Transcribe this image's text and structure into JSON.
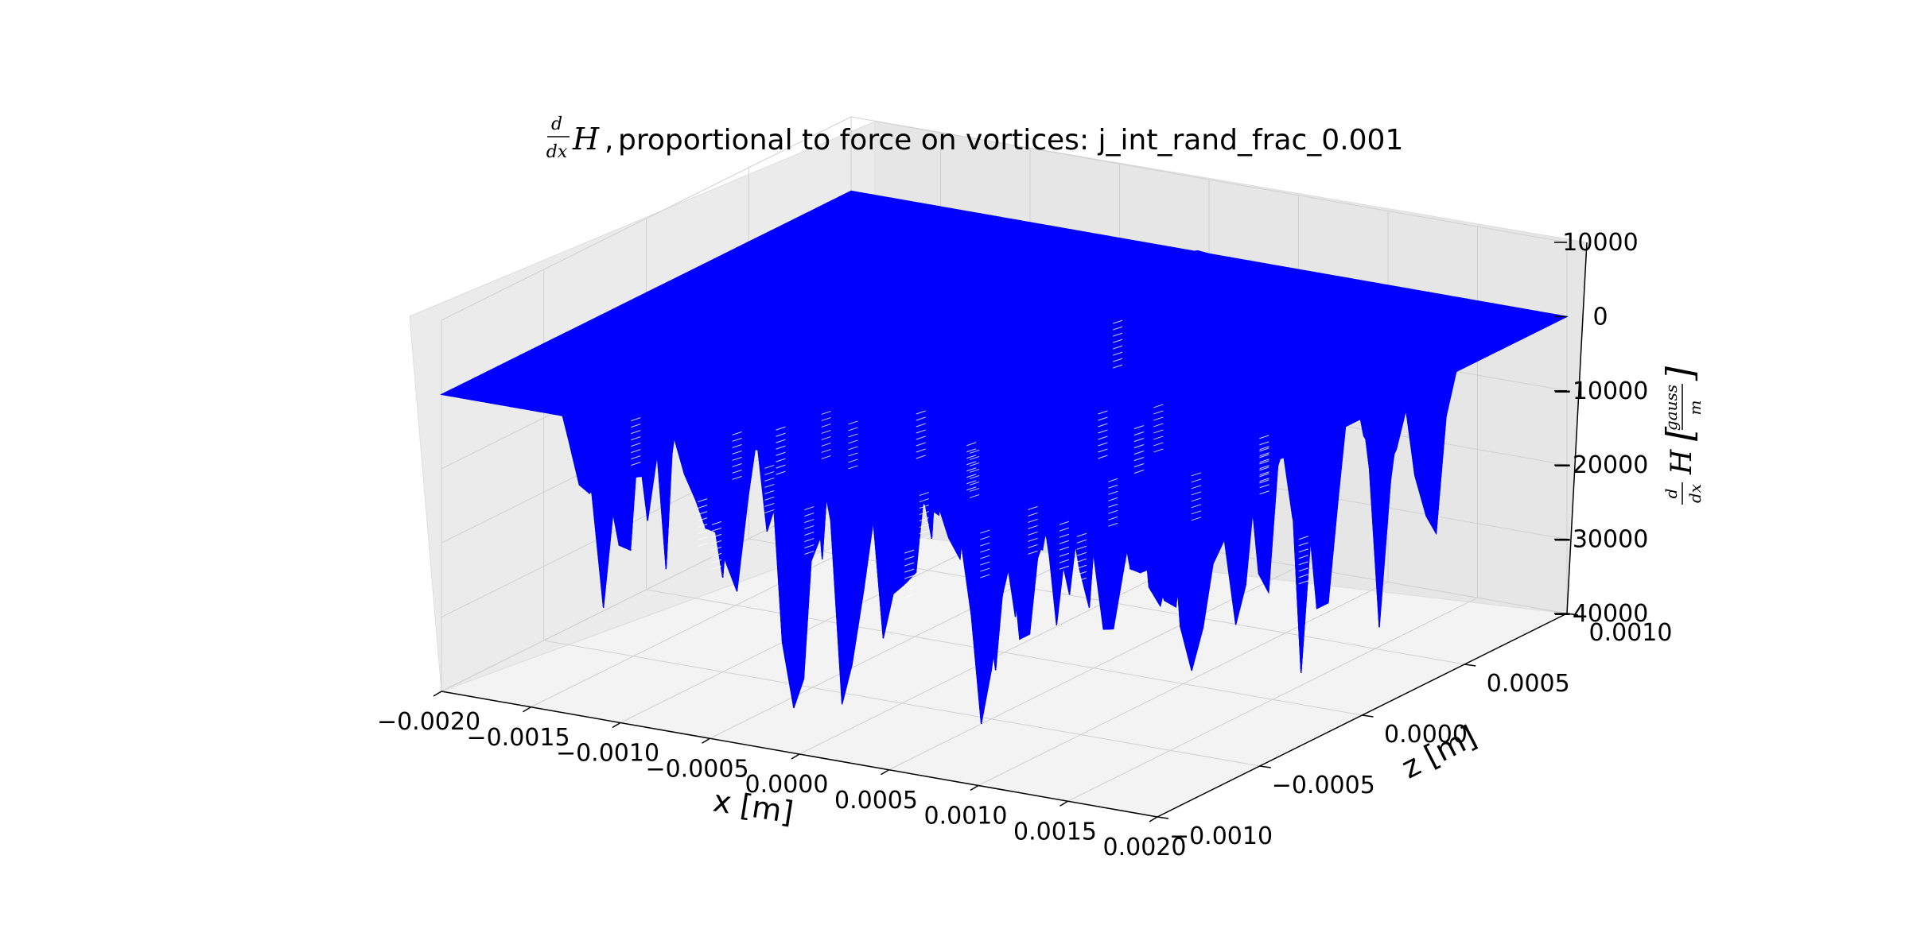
{
  "chart_data": {
    "type": "surface3d",
    "title": "proportional to force on vortices: j_int_rand_frac_0.001",
    "title_math": "d/dx H",
    "xlabel": "x [m]",
    "zlabel_axis": "z [m]",
    "value_label_math": "d/dx H [gauss/m]",
    "x_ticks": [
      "−0.0020",
      "−0.0015",
      "−0.0010",
      "−0.0005",
      "0.0000",
      "0.0005",
      "0.0010",
      "0.0015",
      "0.0020"
    ],
    "z_ticks": [
      "−0.0010",
      "−0.0005",
      "0.0000",
      "0.0005",
      "0.0010"
    ],
    "value_ticks": [
      "10000",
      "0",
      "−10000",
      "−20000",
      "−30000",
      "−40000"
    ],
    "x_range": [
      -0.002,
      0.002
    ],
    "z_range": [
      -0.001,
      0.001
    ],
    "value_range": [
      -40000,
      10000
    ],
    "surface_color": "#0000ff",
    "pane_color": "#f2f2f2",
    "grid": true,
    "notes_shown": {
      "baseline_value": 0,
      "min_value_approx": -37000,
      "max_value_approx": 3000
    }
  }
}
